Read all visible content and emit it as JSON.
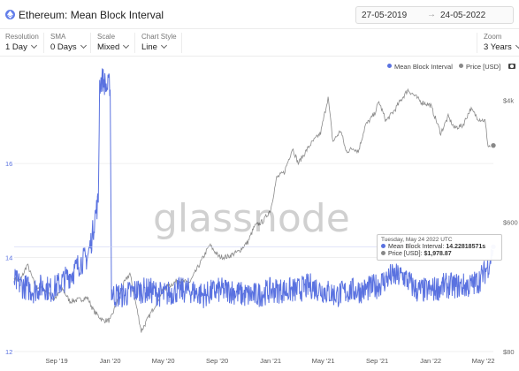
{
  "header": {
    "title": "Ethereum: Mean Block Interval",
    "date_start": "27-05-2019",
    "date_arrow": "→",
    "date_end": "24-05-2022"
  },
  "controls": {
    "resolution": {
      "label": "Resolution",
      "value": "1 Day"
    },
    "sma": {
      "label": "SMA",
      "value": "0 Days"
    },
    "scale": {
      "label": "Scale",
      "value": "Mixed"
    },
    "chart_style": {
      "label": "Chart Style",
      "value": "Line"
    },
    "zoom": {
      "label": "Zoom",
      "value": "3 Years"
    }
  },
  "legend": {
    "series1": "Mean Block Interval",
    "series2": "Price [USD]"
  },
  "tooltip": {
    "date": "Tuesday, May 24 2022 UTC",
    "row1_label": "Mean Block Interval:",
    "row1_value": "14.22818571s",
    "row2_label": "Price [USD]:",
    "row2_value": "$1,978.87"
  },
  "watermark": "glassnode",
  "colors": {
    "interval": "#5a72e0",
    "price": "#888888",
    "eth": "#627eea"
  },
  "icons": {
    "asset": "ethereum-icon",
    "camera": "camera-icon"
  },
  "chart_data": {
    "type": "line",
    "x_ticks": [
      "Sep '19",
      "Jan '20",
      "May '20",
      "Sep '20",
      "Jan '21",
      "May '21",
      "Sep '21",
      "Jan '22",
      "May '22"
    ],
    "x_range": [
      "2019-05-27",
      "2022-05-24"
    ],
    "y_left_ticks": [
      "12",
      "14",
      "16"
    ],
    "y_left_range": [
      12,
      17.9
    ],
    "y_right_ticks": [
      "$80",
      "$600",
      "$4k"
    ],
    "y_right_range": [
      80,
      6000
    ],
    "y_right_scale": "log",
    "grid": "horizontal",
    "legend_position": "top-right",
    "series": [
      {
        "name": "Mean Block Interval",
        "axis": "left",
        "x": [
          "2019-05-27",
          "2019-06-15",
          "2019-07-10",
          "2019-08-01",
          "2019-08-20",
          "2019-09-15",
          "2019-10-10",
          "2019-10-25",
          "2019-11-10",
          "2019-11-20",
          "2019-11-28",
          "2019-12-05",
          "2019-12-08",
          "2019-12-15",
          "2019-12-25",
          "2020-01-01",
          "2020-01-04",
          "2020-01-08",
          "2020-02-01",
          "2020-03-01",
          "2020-04-01",
          "2020-05-01",
          "2020-06-01",
          "2020-07-01",
          "2020-08-01",
          "2020-09-01",
          "2020-10-01",
          "2020-11-01",
          "2020-12-01",
          "2021-01-01",
          "2021-02-01",
          "2021-03-01",
          "2021-04-01",
          "2021-05-01",
          "2021-06-01",
          "2021-07-01",
          "2021-08-01",
          "2021-09-01",
          "2021-10-01",
          "2021-11-01",
          "2021-11-20",
          "2021-12-01",
          "2022-01-01",
          "2022-02-01",
          "2022-03-01",
          "2022-04-01",
          "2022-04-20",
          "2022-05-05",
          "2022-05-15",
          "2022-05-24"
        ],
        "values": [
          13.5,
          13.4,
          13.3,
          13.4,
          13.3,
          13.5,
          13.7,
          13.9,
          14.0,
          14.4,
          14.9,
          15.2,
          17.7,
          17.8,
          17.6,
          17.7,
          13.3,
          13.2,
          13.2,
          13.3,
          13.3,
          13.2,
          13.3,
          13.3,
          13.2,
          13.3,
          13.3,
          13.2,
          13.2,
          13.3,
          13.3,
          13.3,
          13.4,
          13.3,
          13.2,
          13.3,
          13.3,
          13.4,
          13.6,
          13.6,
          13.4,
          13.3,
          13.3,
          13.4,
          13.4,
          13.4,
          13.5,
          13.7,
          13.9,
          14.23
        ]
      },
      {
        "name": "Price [USD]",
        "axis": "right",
        "x": [
          "2019-05-27",
          "2019-06-10",
          "2019-06-26",
          "2019-07-15",
          "2019-08-05",
          "2019-08-25",
          "2019-09-15",
          "2019-10-01",
          "2019-10-25",
          "2019-11-10",
          "2019-11-25",
          "2019-12-15",
          "2020-01-01",
          "2020-02-01",
          "2020-02-15",
          "2020-03-12",
          "2020-03-25",
          "2020-04-15",
          "2020-05-01",
          "2020-06-01",
          "2020-07-01",
          "2020-07-25",
          "2020-08-15",
          "2020-09-05",
          "2020-09-25",
          "2020-10-20",
          "2020-11-10",
          "2020-11-25",
          "2020-12-15",
          "2021-01-01",
          "2021-01-15",
          "2021-02-01",
          "2021-02-20",
          "2021-03-05",
          "2021-04-01",
          "2021-04-25",
          "2021-05-12",
          "2021-05-23",
          "2021-06-10",
          "2021-06-22",
          "2021-07-10",
          "2021-07-20",
          "2021-08-05",
          "2021-08-25",
          "2021-09-05",
          "2021-09-21",
          "2021-10-10",
          "2021-10-25",
          "2021-11-10",
          "2021-11-25",
          "2021-12-10",
          "2022-01-01",
          "2022-01-24",
          "2022-02-10",
          "2022-02-24",
          "2022-03-15",
          "2022-04-02",
          "2022-04-20",
          "2022-05-05",
          "2022-05-12",
          "2022-05-24"
        ],
        "values": [
          250,
          240,
          310,
          220,
          210,
          180,
          210,
          175,
          180,
          185,
          150,
          130,
          130,
          230,
          270,
          110,
          130,
          170,
          210,
          240,
          235,
          320,
          420,
          350,
          350,
          380,
          440,
          560,
          610,
          730,
          1200,
          1300,
          1900,
          1500,
          2000,
          2400,
          4200,
          2100,
          2500,
          1800,
          1900,
          1800,
          2700,
          3200,
          3900,
          2900,
          3400,
          4000,
          4700,
          4300,
          3900,
          3700,
          2400,
          3100,
          2600,
          2700,
          3500,
          3000,
          2900,
          1950,
          1978.87
        ]
      }
    ],
    "annotations": [
      "Tuesday, May 24 2022 UTC",
      "Mean Block Interval: 14.22818571s",
      "Price [USD]: $1,978.87"
    ]
  }
}
